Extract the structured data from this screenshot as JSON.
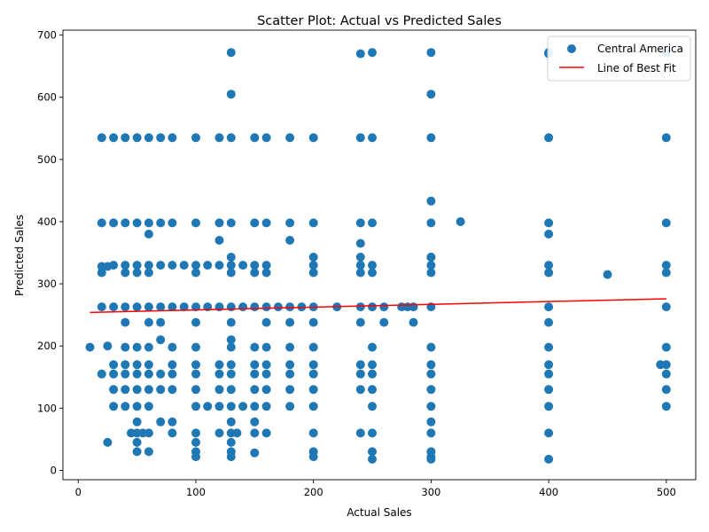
{
  "chart_data": {
    "type": "scatter",
    "title": "Scatter Plot: Actual vs Predicted Sales",
    "xlabel": "Actual Sales",
    "ylabel": "Predicted Sales",
    "xlim": [
      -13,
      525
    ],
    "ylim": [
      -15,
      708
    ],
    "xticks": [
      0,
      100,
      200,
      300,
      400,
      500
    ],
    "yticks": [
      0,
      100,
      200,
      300,
      400,
      500,
      600,
      700
    ],
    "legend_position": "upper right",
    "colors": {
      "points": "#1f77b4",
      "fit_line": "#ff0000"
    },
    "series": [
      {
        "name": "Central America",
        "kind": "points",
        "x": [
          10,
          20,
          30,
          40,
          50,
          60,
          70,
          80,
          90,
          100,
          110,
          120,
          130,
          140,
          150,
          160,
          170,
          180,
          190,
          200,
          220,
          240,
          250,
          260,
          275,
          280,
          285,
          300,
          325,
          400,
          450,
          495,
          500,
          20,
          30,
          40,
          50,
          60,
          70,
          80,
          100,
          120,
          130,
          150,
          160,
          180,
          200,
          240,
          250,
          300,
          400,
          500,
          20,
          30,
          40,
          50,
          60,
          70,
          80,
          100,
          120,
          130,
          150,
          160,
          180,
          200,
          240,
          250,
          300,
          400,
          500,
          20,
          25,
          30,
          40,
          50,
          60,
          70,
          80,
          90,
          100,
          110,
          120,
          130,
          140,
          150,
          160,
          200,
          240,
          250,
          300,
          400,
          500,
          30,
          40,
          50,
          60,
          80,
          100,
          120,
          130,
          150,
          160,
          180,
          200,
          240,
          250,
          300,
          400,
          500,
          25,
          40,
          50,
          60,
          80,
          100,
          130,
          150,
          160,
          180,
          200,
          250,
          300,
          400,
          500,
          20,
          30,
          40,
          50,
          60,
          70,
          80,
          100,
          120,
          130,
          150,
          160,
          180,
          200,
          240,
          250,
          300,
          400,
          500,
          30,
          40,
          50,
          60,
          70,
          80,
          100,
          120,
          130,
          150,
          160,
          180,
          200,
          240,
          250,
          300,
          400,
          500,
          20,
          40,
          50,
          60,
          100,
          130,
          150,
          160,
          200,
          240,
          250,
          300,
          400,
          500,
          30,
          40,
          50,
          60,
          70,
          80,
          100,
          110,
          120,
          130,
          140,
          150,
          160,
          180,
          200,
          250,
          300,
          400,
          500,
          45,
          50,
          55,
          60,
          80,
          100,
          120,
          130,
          135,
          150,
          160,
          200,
          240,
          250,
          300,
          400,
          50,
          60,
          100,
          130,
          200,
          250,
          300,
          100,
          130,
          150,
          200,
          300,
          130,
          300,
          400,
          300,
          130,
          240,
          250,
          300,
          400,
          500,
          40,
          60,
          70,
          100,
          130,
          160,
          180,
          200,
          240,
          260,
          285,
          400,
          60,
          120,
          180,
          240,
          400,
          130,
          200,
          240,
          300,
          300,
          25,
          50,
          100,
          130,
          250,
          300,
          400,
          70,
          130,
          50,
          130,
          150,
          300
        ],
        "y": [
          198,
          263,
          263,
          263,
          263,
          263,
          263,
          263,
          263,
          263,
          263,
          263,
          263,
          263,
          263,
          263,
          263,
          263,
          263,
          263,
          263,
          263,
          263,
          263,
          263,
          263,
          263,
          263,
          400,
          263,
          315,
          170,
          263,
          398,
          398,
          398,
          398,
          398,
          398,
          398,
          398,
          398,
          398,
          398,
          398,
          398,
          398,
          398,
          398,
          398,
          398,
          398,
          535,
          535,
          535,
          535,
          535,
          535,
          535,
          535,
          535,
          535,
          535,
          535,
          535,
          535,
          535,
          535,
          535,
          535,
          535,
          328,
          328,
          330,
          330,
          330,
          330,
          330,
          330,
          330,
          330,
          330,
          330,
          330,
          330,
          330,
          330,
          330,
          330,
          330,
          330,
          330,
          330,
          170,
          170,
          170,
          170,
          170,
          170,
          170,
          170,
          170,
          170,
          170,
          170,
          170,
          170,
          170,
          170,
          170,
          200,
          198,
          198,
          198,
          198,
          198,
          198,
          198,
          198,
          198,
          198,
          198,
          198,
          198,
          198,
          155,
          155,
          155,
          155,
          155,
          155,
          155,
          155,
          155,
          155,
          155,
          155,
          155,
          155,
          155,
          155,
          155,
          155,
          155,
          130,
          130,
          130,
          130,
          130,
          130,
          130,
          130,
          130,
          130,
          130,
          130,
          130,
          130,
          130,
          130,
          130,
          130,
          318,
          318,
          318,
          318,
          318,
          318,
          318,
          318,
          318,
          318,
          318,
          318,
          318,
          318,
          103,
          103,
          103,
          103,
          78,
          78,
          103,
          103,
          103,
          103,
          103,
          103,
          103,
          103,
          103,
          103,
          103,
          103,
          103,
          60,
          60,
          60,
          60,
          60,
          60,
          60,
          60,
          60,
          60,
          60,
          60,
          60,
          60,
          60,
          60,
          30,
          30,
          30,
          30,
          30,
          30,
          30,
          22,
          22,
          28,
          22,
          22,
          605,
          605,
          670,
          433,
          672,
          670,
          672,
          672,
          672,
          672,
          238,
          238,
          238,
          238,
          238,
          238,
          238,
          238,
          238,
          238,
          238,
          238,
          380,
          370,
          370,
          365,
          380,
          343,
          343,
          343,
          343,
          343,
          45,
          45,
          45,
          45,
          18,
          18,
          18,
          210,
          210,
          78,
          78,
          78,
          78
        ]
      },
      {
        "name": "Line of Best Fit",
        "kind": "line",
        "x": [
          10,
          500
        ],
        "y": [
          254,
          276
        ]
      }
    ]
  }
}
